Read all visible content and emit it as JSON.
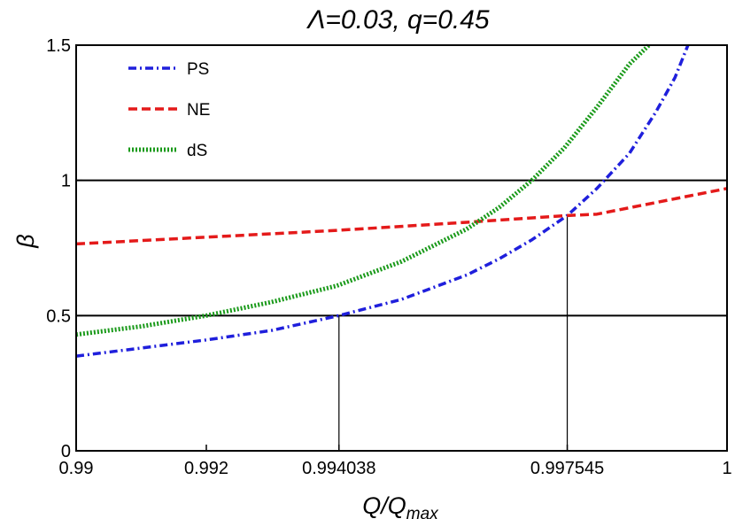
{
  "chart_data": {
    "type": "line",
    "title": "Λ=0.03, q=0.45",
    "xlabel": "Q/Q",
    "xlabel_sub": "max",
    "ylabel": "β",
    "xlim": [
      0.99,
      1.0
    ],
    "ylim": [
      0,
      1.5
    ],
    "x_ticks": [
      {
        "value": 0.99,
        "label": "0.99"
      },
      {
        "value": 0.992,
        "label": "0.992"
      },
      {
        "value": 0.994038,
        "label": "0.994038"
      },
      {
        "value": 0.997545,
        "label": "0.997545"
      },
      {
        "value": 1.0,
        "label": "1"
      }
    ],
    "y_ticks": [
      {
        "value": 0,
        "label": "0"
      },
      {
        "value": 0.5,
        "label": "0.5"
      },
      {
        "value": 1,
        "label": "1"
      },
      {
        "value": 1.5,
        "label": "1.5"
      }
    ],
    "hlines": [
      0.5,
      1.0
    ],
    "vlines": [
      {
        "x": 0.994038,
        "y_top": 0.5
      },
      {
        "x": 0.997545,
        "y_top": 0.87
      }
    ],
    "legend_position": "top-left",
    "series": [
      {
        "name": "PS",
        "color": "#1f1fdc",
        "dash": "dashdot",
        "x": [
          0.99,
          0.991,
          0.992,
          0.993,
          0.994038,
          0.995,
          0.996,
          0.9965,
          0.997,
          0.997545,
          0.998,
          0.9985,
          0.9989,
          0.9992,
          0.9994
        ],
        "y": [
          0.35,
          0.38,
          0.41,
          0.445,
          0.5,
          0.56,
          0.65,
          0.71,
          0.78,
          0.87,
          0.97,
          1.1,
          1.25,
          1.38,
          1.5
        ]
      },
      {
        "name": "NE",
        "color": "#e41a1a",
        "dash": "dashed",
        "x": [
          0.99,
          0.992,
          0.994,
          0.996,
          0.997545,
          0.998,
          1.0
        ],
        "y": [
          0.765,
          0.79,
          0.815,
          0.845,
          0.87,
          0.875,
          0.97
        ]
      },
      {
        "name": "dS",
        "color": "#1a9a1a",
        "dash": "dotted",
        "x": [
          0.99,
          0.991,
          0.992,
          0.993,
          0.994,
          0.995,
          0.996,
          0.9965,
          0.997,
          0.9975,
          0.998,
          0.9985,
          0.9988
        ],
        "y": [
          0.43,
          0.46,
          0.5,
          0.55,
          0.61,
          0.7,
          0.82,
          0.9,
          1.0,
          1.12,
          1.27,
          1.43,
          1.5
        ]
      }
    ]
  }
}
